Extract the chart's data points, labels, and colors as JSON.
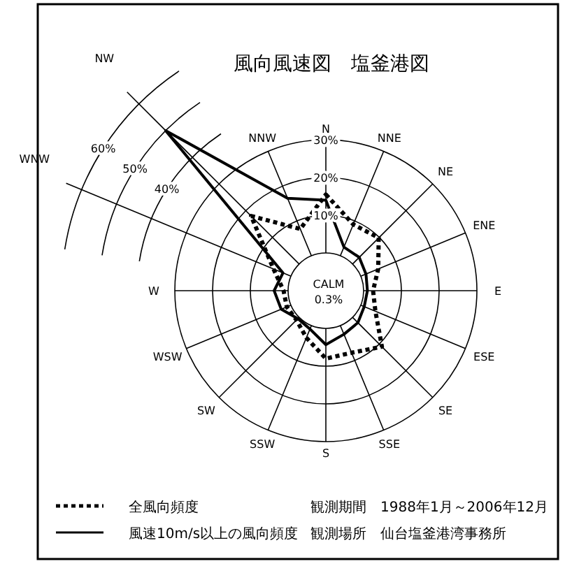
{
  "chart_data": {
    "type": "radar",
    "title": "風向風速図　塩釜港図",
    "categories": [
      "N",
      "NNE",
      "NE",
      "ENE",
      "E",
      "ESE",
      "SE",
      "SSE",
      "S",
      "SSW",
      "SW",
      "WSW",
      "W",
      "WNW",
      "NW",
      "NNW"
    ],
    "ylim": [
      -10,
      60
    ],
    "yticks": [
      {
        "value": 10,
        "label": "10%"
      },
      {
        "value": 20,
        "label": "20%"
      },
      {
        "value": 30,
        "label": "30%"
      },
      {
        "value": 40,
        "label": "40%"
      },
      {
        "value": 50,
        "label": "50%"
      },
      {
        "value": 60,
        "label": "60%"
      }
    ],
    "series": [
      {
        "name": "全風向頻度",
        "color": "#000000",
        "line_style": "dotted",
        "values": [
          15.5,
          9,
          9.8,
          5,
          2.5,
          4.2,
          11,
          7.8,
          8,
          3.5,
          1,
          1.2,
          1.2,
          5,
          18,
          7.7
        ]
      },
      {
        "name": "風速10m/s以上の風向頻度",
        "color": "#000000",
        "line_style": "solid",
        "values": [
          14,
          2.5,
          2.5,
          1.5,
          1,
          1,
          2,
          2.5,
          4.3,
          1,
          0.5,
          2.8,
          3.7,
          2.3,
          50,
          16.5
        ]
      }
    ],
    "legend": "bottom left",
    "annotations": [
      "CALM",
      "0.3%",
      "観測期間　1988年1月～2006年12月",
      "観測場所　仙台塩釜港湾事務所"
    ]
  }
}
